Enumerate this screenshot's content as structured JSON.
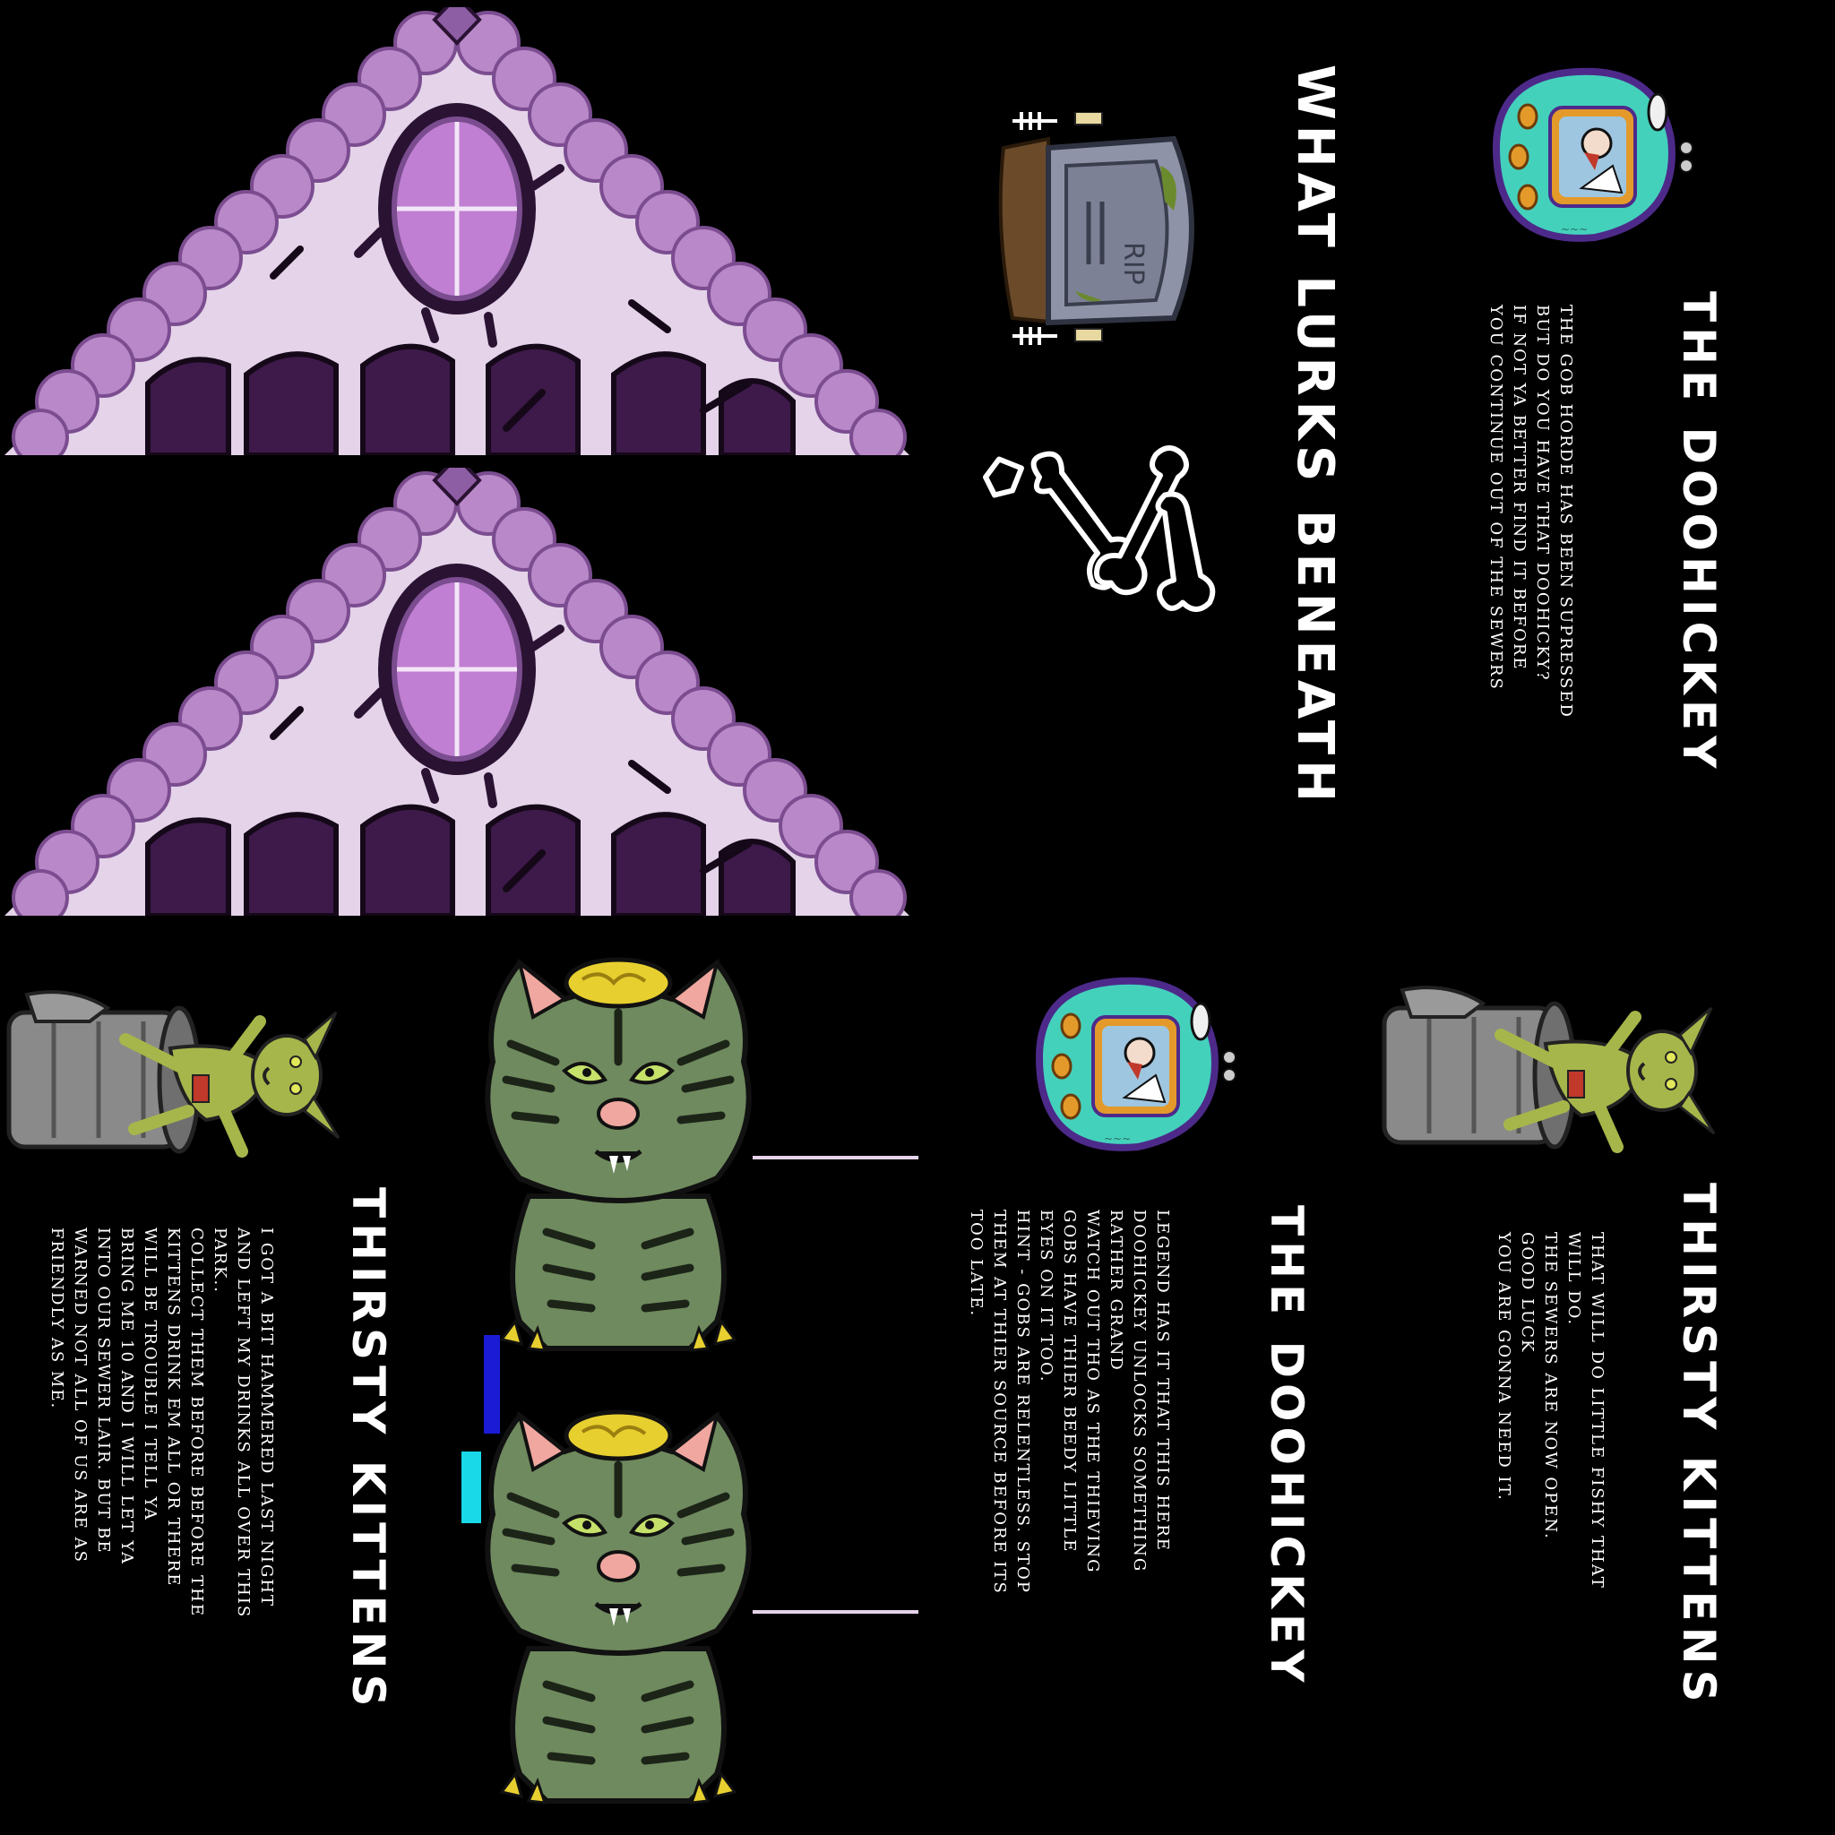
{
  "atlas": {
    "colors": {
      "background": "#000000",
      "roof_shingle": "#b988c8",
      "roof_shingle_dark": "#8e5ea4",
      "roof_fill": "#e4d3e9",
      "roof_dark": "#2a1233",
      "window_glass": "#c07fd2",
      "cat_fur": "#6f8a5e",
      "cat_stripe": "#1c2418",
      "cat_brain": "#e7cf2f",
      "cat_ear": "#f0a7a0",
      "device_shell": "#44d1bc",
      "device_rim": "#4d2a8a",
      "tombstone": "#8f93a8",
      "bin_metal": "#8a8a8a",
      "goblin_skin": "#a7b64a"
    },
    "sprites": [
      {
        "name": "roof-gable",
        "icon": "roof-window-gable-icon"
      },
      {
        "name": "roof-gable",
        "icon": "roof-window-gable-icon"
      },
      {
        "name": "zombie-cat",
        "icon": "zombie-kitten-icon"
      },
      {
        "name": "zombie-cat",
        "icon": "zombie-kitten-icon"
      },
      {
        "name": "tombstone",
        "icon": "rip-tombstone-icon",
        "engraving": "RIP"
      },
      {
        "name": "bones",
        "icon": "crossed-bones-icon"
      },
      {
        "name": "doohickey-device",
        "icon": "virtual-pet-device-icon"
      },
      {
        "name": "goblin-in-bin",
        "icon": "goblin-trash-can-icon"
      }
    ]
  },
  "panels": {
    "lurks": {
      "title": "WHAT LURKS BENEATH"
    },
    "doohickey_top": {
      "title": "THE DOOHICKEY",
      "lines": [
        "THE GOB HORDE HAS BEEN SUPRESSED",
        "BUT DO YOU HAVE THAT DOOHICKY?",
        "IF NOT YA BETTER FIND IT BEFORE",
        "YOU CONTINUE OUT OF THE SEWERS"
      ]
    },
    "kittens_left": {
      "title": "THIRSTY KITTENS",
      "lines": [
        "I GOT A BIT HAMMERED LAST NIGHT",
        "AND LEFT MY DRINKS ALL OVER THIS",
        "PARK..",
        "COLLECT THEM BEFORE BEFORE THE",
        "KITTENS DRINK EM ALL OR THERE",
        "WILL BE TROUBLE I TELL YA",
        "BRING ME 10 AND I WILL LET YA",
        "INTO OUR SEWER LAIR. BUT BE",
        "WARNED NOT ALL OF US ARE AS",
        "FRIENDLY AS ME."
      ]
    },
    "doohickey_bottom": {
      "title": "THE DOOHICKEY",
      "lines": [
        "LEGEND HAS IT THAT THIS HERE",
        "DOOHICKEY UNLOCKS SOMETHING",
        "RATHER GRAND",
        "WATCH OUT THO AS THE THIEVING",
        "GOBS HAVE THIER BEEDY LITTLE",
        "EYES ON IT TOO.",
        "HINT - GOBS ARE RELENTLESS. STOP",
        "THEM AT THIER SOURCE BEFORE ITS",
        "TOO LATE."
      ]
    },
    "kittens_right": {
      "title": "THIRSTY KITTENS",
      "lines": [
        "THAT WILL DO LITTLE FISHY THAT",
        "WILL DO.",
        "THE SEWERS ARE NOW OPEN.",
        "GOOD LUCK",
        "YOU ARE GONNA NEED IT."
      ]
    }
  }
}
